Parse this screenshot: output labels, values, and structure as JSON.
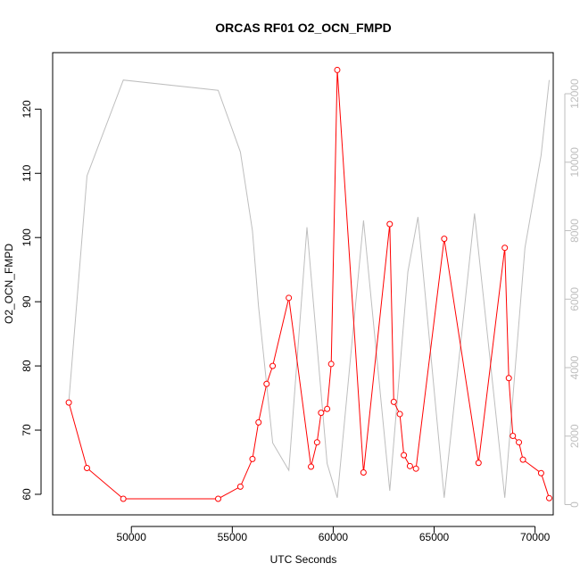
{
  "chart_data": {
    "type": "line",
    "title": "ORCAS RF01 O2_OCN_FMPD",
    "xlabel": "UTC Seconds",
    "ylabel": "O2_OCN_FMPD",
    "xlim": [
      46100,
      70900
    ],
    "ylim": [
      56.8,
      128.8
    ],
    "y2lim": [
      -300,
      13200
    ],
    "x_ticks": [
      50000,
      55000,
      60000,
      65000,
      70000
    ],
    "y_ticks": [
      60,
      70,
      80,
      90,
      100,
      110,
      120
    ],
    "y2_ticks": [
      0,
      2000,
      4000,
      6000,
      8000,
      10000,
      12000
    ],
    "series": [
      {
        "axis": "left",
        "color": "#ff0000",
        "marker": "open-circle",
        "x": [
          46900,
          47800,
          49600,
          54300,
          55400,
          56000,
          56300,
          56700,
          57000,
          57800,
          58900,
          59200,
          59400,
          59700,
          59900,
          60200,
          61500,
          62800,
          63000,
          63300,
          63500,
          63800,
          64100,
          65500,
          67200,
          68500,
          68700,
          68900,
          69200,
          69400,
          70300,
          70700
        ],
        "values": [
          74.3,
          64.1,
          59.3,
          59.3,
          61.2,
          65.5,
          71.2,
          77.2,
          80.0,
          90.6,
          64.3,
          68.1,
          72.7,
          73.3,
          80.3,
          126.1,
          63.4,
          102.1,
          74.4,
          72.5,
          66.1,
          64.4,
          64.0,
          99.8,
          64.9,
          98.4,
          78.1,
          69.1,
          68.1,
          65.4,
          63.3,
          59.4
        ]
      },
      {
        "axis": "right",
        "color": "#bebebe",
        "marker": "none",
        "x": [
          46900,
          47800,
          49600,
          54300,
          55400,
          56000,
          56300,
          57000,
          57800,
          58700,
          59700,
          60200,
          61500,
          62800,
          63700,
          64200,
          65500,
          67000,
          68500,
          69500,
          70300,
          70700
        ],
        "values": [
          3000,
          9600,
          12400,
          12100,
          10300,
          8000,
          5800,
          1800,
          1000,
          8100,
          1200,
          200,
          8300,
          400,
          6800,
          8400,
          200,
          8500,
          200,
          7500,
          10200,
          12400
        ]
      }
    ]
  }
}
